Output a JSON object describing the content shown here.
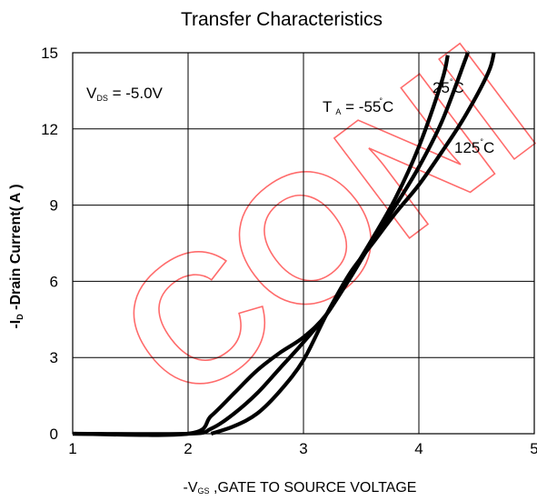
{
  "chart_data": {
    "type": "line",
    "title": "Transfer Characteristics",
    "xlabel": {
      "prefix": "-V",
      "sub": "GS",
      "rest": " ,GATE TO SOURCE VOLTAGE"
    },
    "ylabel": {
      "prefix": "-I",
      "sub": "D",
      "rest": " -Drain Current( A )"
    },
    "xlim": [
      1,
      5
    ],
    "ylim": [
      0,
      15
    ],
    "xticks": [
      1,
      2,
      3,
      4,
      5
    ],
    "yticks": [
      0,
      3,
      6,
      9,
      12,
      15
    ],
    "grid": true,
    "annotations": {
      "vds": {
        "prefix": "V",
        "sub": "DS",
        "rest": " = -5.0V"
      },
      "ta": {
        "prefix": "T",
        "sub": "A",
        "rest": " = -55",
        "unit": "C"
      },
      "t25": {
        "value": "25",
        "unit": "C"
      },
      "t125": {
        "value": "125",
        "unit": "C"
      }
    },
    "watermark": "CONI",
    "colors": {
      "curve": "#000000",
      "grid": "#000000",
      "watermark": "#ff6b6b"
    },
    "series": [
      {
        "x": [
          1.0,
          2.0,
          2.2,
          2.4,
          2.6,
          2.8,
          3.0,
          3.2,
          3.4,
          3.6,
          3.8,
          4.0,
          4.2,
          4.25
        ],
        "y": [
          0,
          0,
          0.7,
          1.6,
          2.5,
          3.2,
          3.8,
          4.7,
          6.2,
          7.7,
          9.3,
          11.3,
          13.9,
          14.9
        ]
      },
      {
        "x": [
          1.0,
          2.0,
          2.2,
          2.4,
          2.6,
          2.8,
          3.0,
          3.2,
          3.4,
          3.6,
          3.8,
          4.0,
          4.2,
          4.4,
          4.42
        ],
        "y": [
          0,
          0,
          0.2,
          0.8,
          1.6,
          2.6,
          3.6,
          4.7,
          6.1,
          7.6,
          9.0,
          10.5,
          12.3,
          14.7,
          15.0
        ]
      },
      {
        "x": [
          2.2,
          2.4,
          2.6,
          2.8,
          3.0,
          3.2,
          3.4,
          3.6,
          3.8,
          4.0,
          4.2,
          4.4,
          4.6,
          4.65
        ],
        "y": [
          0,
          0.3,
          0.8,
          1.7,
          2.9,
          4.7,
          6.3,
          7.5,
          8.7,
          9.8,
          11.1,
          12.5,
          14.2,
          15.0
        ]
      }
    ]
  }
}
